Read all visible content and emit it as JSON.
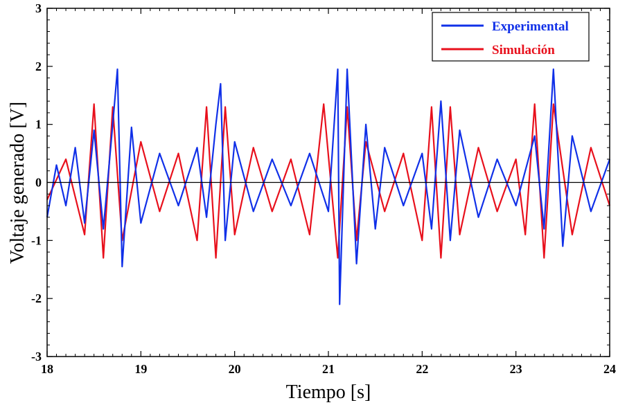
{
  "chart_data": {
    "type": "line",
    "xlabel": "Tiempo [s]",
    "ylabel": "Voltaje generado [V]",
    "xlim": [
      18,
      24
    ],
    "ylim": [
      -3,
      3
    ],
    "x_ticks": [
      "18",
      "19",
      "20",
      "21",
      "22",
      "23",
      "24"
    ],
    "y_ticks": [
      "-3",
      "-2",
      "-1",
      "0",
      "1",
      "2",
      "3"
    ],
    "grid": false,
    "zero_line": true,
    "legend": {
      "placement": "top-right"
    },
    "series": [
      {
        "name": "Experimental",
        "color": "#1030e8",
        "x": [
          18.0,
          18.1,
          18.2,
          18.3,
          18.4,
          18.5,
          18.6,
          18.7,
          18.75,
          18.8,
          18.9,
          19.0,
          19.2,
          19.4,
          19.6,
          19.7,
          19.8,
          19.85,
          19.9,
          20.0,
          20.2,
          20.4,
          20.6,
          20.8,
          21.0,
          21.1,
          21.12,
          21.2,
          21.3,
          21.4,
          21.5,
          21.6,
          21.8,
          22.0,
          22.1,
          22.2,
          22.3,
          22.4,
          22.6,
          22.8,
          23.0,
          23.2,
          23.3,
          23.4,
          23.5,
          23.6,
          23.8,
          24.0
        ],
        "y": [
          -0.6,
          0.3,
          -0.4,
          0.6,
          -0.7,
          0.9,
          -0.8,
          1.0,
          1.95,
          -1.45,
          0.95,
          -0.7,
          0.5,
          -0.4,
          0.6,
          -0.6,
          1.0,
          1.7,
          -1.0,
          0.7,
          -0.5,
          0.4,
          -0.4,
          0.5,
          -0.5,
          1.95,
          -2.1,
          1.95,
          -1.4,
          1.0,
          -0.8,
          0.6,
          -0.4,
          0.5,
          -0.8,
          1.4,
          -1.0,
          0.9,
          -0.6,
          0.4,
          -0.4,
          0.8,
          -0.8,
          1.95,
          -1.1,
          0.8,
          -0.5,
          0.4
        ]
      },
      {
        "name": "Simulación",
        "color": "#e8101c",
        "x": [
          18.0,
          18.2,
          18.4,
          18.5,
          18.6,
          18.7,
          18.8,
          19.0,
          19.2,
          19.4,
          19.6,
          19.7,
          19.8,
          19.9,
          20.0,
          20.2,
          20.4,
          20.6,
          20.8,
          20.95,
          21.1,
          21.2,
          21.3,
          21.4,
          21.6,
          21.8,
          22.0,
          22.1,
          22.2,
          22.3,
          22.4,
          22.6,
          22.8,
          23.0,
          23.1,
          23.2,
          23.3,
          23.4,
          23.6,
          23.8,
          24.0
        ],
        "y": [
          -0.3,
          0.4,
          -0.9,
          1.35,
          -1.3,
          1.3,
          -1.0,
          0.7,
          -0.5,
          0.5,
          -1.0,
          1.3,
          -1.3,
          1.3,
          -0.9,
          0.6,
          -0.5,
          0.4,
          -0.9,
          1.35,
          -1.3,
          1.3,
          -1.0,
          0.7,
          -0.5,
          0.5,
          -1.0,
          1.3,
          -1.3,
          1.3,
          -0.9,
          0.6,
          -0.5,
          0.4,
          -0.9,
          1.35,
          -1.3,
          1.35,
          -0.9,
          0.6,
          -0.4
        ]
      }
    ]
  }
}
